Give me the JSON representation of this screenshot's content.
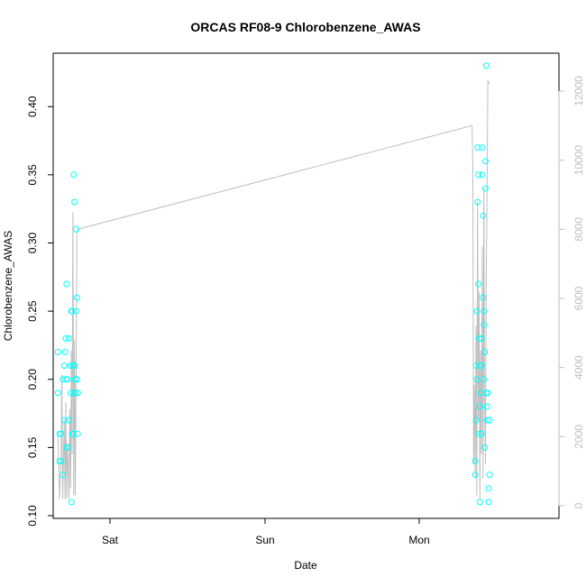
{
  "chart_data": {
    "type": "scatter",
    "title": "ORCAS RF08-9 Chlorobenzene_AWAS",
    "xlabel": "Date",
    "ylabel": "Chlorobenzene_AWAS",
    "x_ticks": [
      "Sat",
      "Sun",
      "Mon"
    ],
    "y_ticks": [
      "0.10",
      "0.15",
      "0.20",
      "0.25",
      "0.30",
      "0.35",
      "0.40"
    ],
    "y_lim": [
      0.1,
      0.42
    ],
    "y2_ticks": [
      "0",
      "2000",
      "4000",
      "6000",
      "8000",
      "10000",
      "12000"
    ],
    "y2_lim": [
      0,
      12000
    ],
    "grid": false,
    "colors": {
      "points": "#00ffff",
      "line": "#bebebe",
      "right_axis": "#bebebe"
    },
    "series": [
      {
        "values": [
          {
            "day": 0.73,
            "y": 0.22
          },
          {
            "day": 0.73,
            "y": 0.19
          },
          {
            "day": 0.74,
            "y": 0.16
          },
          {
            "day": 0.74,
            "y": 0.14
          },
          {
            "day": 0.75,
            "y": 0.16
          },
          {
            "day": 0.75,
            "y": 0.14
          },
          {
            "day": 0.76,
            "y": 0.13
          },
          {
            "day": 0.76,
            "y": 0.2
          },
          {
            "day": 0.77,
            "y": 0.21
          },
          {
            "day": 0.77,
            "y": 0.17
          },
          {
            "day": 0.775,
            "y": 0.22
          },
          {
            "day": 0.78,
            "y": 0.2
          },
          {
            "day": 0.78,
            "y": 0.23
          },
          {
            "day": 0.785,
            "y": 0.27
          },
          {
            "day": 0.785,
            "y": 0.15
          },
          {
            "day": 0.79,
            "y": 0.2
          },
          {
            "day": 0.79,
            "y": 0.15
          },
          {
            "day": 0.8,
            "y": 0.17
          },
          {
            "day": 0.8,
            "y": 0.23
          },
          {
            "day": 0.81,
            "y": 0.19
          },
          {
            "day": 0.81,
            "y": 0.21
          },
          {
            "day": 0.815,
            "y": 0.25
          },
          {
            "day": 0.815,
            "y": 0.11
          },
          {
            "day": 0.82,
            "y": 0.16
          },
          {
            "day": 0.82,
            "y": 0.25
          },
          {
            "day": 0.825,
            "y": 0.16
          },
          {
            "day": 0.825,
            "y": 0.21
          },
          {
            "day": 0.83,
            "y": 0.19
          },
          {
            "day": 0.83,
            "y": 0.35
          },
          {
            "day": 0.835,
            "y": 0.33
          },
          {
            "day": 0.835,
            "y": 0.21
          },
          {
            "day": 0.84,
            "y": 0.19
          },
          {
            "day": 0.84,
            "y": 0.2
          },
          {
            "day": 0.845,
            "y": 0.25
          },
          {
            "day": 0.845,
            "y": 0.31
          },
          {
            "day": 0.85,
            "y": 0.26
          },
          {
            "day": 0.85,
            "y": 0.2
          },
          {
            "day": 0.855,
            "y": 0.19
          },
          {
            "day": 0.855,
            "y": 0.16
          },
          {
            "day": 2.65,
            "y": 0.13
          },
          {
            "day": 2.65,
            "y": 0.14
          },
          {
            "day": 2.655,
            "y": 0.17
          },
          {
            "day": 2.655,
            "y": 0.21
          },
          {
            "day": 2.66,
            "y": 0.2
          },
          {
            "day": 2.66,
            "y": 0.25
          },
          {
            "day": 2.665,
            "y": 0.33
          },
          {
            "day": 2.665,
            "y": 0.37
          },
          {
            "day": 2.67,
            "y": 0.35
          },
          {
            "day": 2.67,
            "y": 0.27
          },
          {
            "day": 2.675,
            "y": 0.23
          },
          {
            "day": 2.675,
            "y": 0.16
          },
          {
            "day": 2.68,
            "y": 0.18
          },
          {
            "day": 2.68,
            "y": 0.11
          },
          {
            "day": 2.685,
            "y": 0.21
          },
          {
            "day": 2.685,
            "y": 0.19
          },
          {
            "day": 2.69,
            "y": 0.16
          },
          {
            "day": 2.69,
            "y": 0.23
          },
          {
            "day": 2.695,
            "y": 0.37
          },
          {
            "day": 2.695,
            "y": 0.35
          },
          {
            "day": 2.7,
            "y": 0.32
          },
          {
            "day": 2.7,
            "y": 0.26
          },
          {
            "day": 2.705,
            "y": 0.24
          },
          {
            "day": 2.705,
            "y": 0.2
          },
          {
            "day": 2.71,
            "y": 0.15
          },
          {
            "day": 2.71,
            "y": 0.22
          },
          {
            "day": 2.715,
            "y": 0.34
          },
          {
            "day": 2.715,
            "y": 0.36
          },
          {
            "day": 2.72,
            "y": 0.43
          },
          {
            "day": 2.72,
            "y": 0.19
          },
          {
            "day": 2.725,
            "y": 0.17
          },
          {
            "day": 2.725,
            "y": 0.18
          },
          {
            "day": 2.73,
            "y": 0.19
          },
          {
            "day": 2.735,
            "y": 0.12
          },
          {
            "day": 2.735,
            "y": 0.11
          },
          {
            "day": 2.74,
            "y": 0.13
          },
          {
            "day": 2.74,
            "y": 0.17
          },
          {
            "day": 2.705,
            "y": 0.25
          },
          {
            "day": 2.69,
            "y": 0.21
          },
          {
            "day": 2.68,
            "y": 0.18
          }
        ]
      },
      {
        "axis": "right",
        "values": [
          {
            "day": 0.73,
            "y": 2000
          },
          {
            "day": 0.74,
            "y": 200
          },
          {
            "day": 0.75,
            "y": 1500
          },
          {
            "day": 0.755,
            "y": 3800
          },
          {
            "day": 0.76,
            "y": 200
          },
          {
            "day": 0.77,
            "y": 2500
          },
          {
            "day": 0.775,
            "y": 200
          },
          {
            "day": 0.78,
            "y": 3000
          },
          {
            "day": 0.785,
            "y": 200
          },
          {
            "day": 0.79,
            "y": 1800
          },
          {
            "day": 0.8,
            "y": 200
          },
          {
            "day": 0.805,
            "y": 2800
          },
          {
            "day": 0.81,
            "y": 500
          },
          {
            "day": 0.815,
            "y": 4500
          },
          {
            "day": 0.82,
            "y": 1500
          },
          {
            "day": 0.825,
            "y": 8500
          },
          {
            "day": 0.83,
            "y": 300
          },
          {
            "day": 0.835,
            "y": 4800
          },
          {
            "day": 0.84,
            "y": 300
          },
          {
            "day": 0.845,
            "y": 3500
          },
          {
            "day": 0.85,
            "y": 7900
          },
          {
            "day": 0.855,
            "y": 8000
          },
          {
            "day": 2.63,
            "y": 11000
          },
          {
            "day": 2.635,
            "y": 9800
          },
          {
            "day": 2.64,
            "y": 1200
          },
          {
            "day": 2.645,
            "y": 3500
          },
          {
            "day": 2.65,
            "y": 800
          },
          {
            "day": 2.655,
            "y": 5200
          },
          {
            "day": 2.66,
            "y": 300
          },
          {
            "day": 2.665,
            "y": 8800
          },
          {
            "day": 2.67,
            "y": 2500
          },
          {
            "day": 2.675,
            "y": 6200
          },
          {
            "day": 2.68,
            "y": 200
          },
          {
            "day": 2.685,
            "y": 4500
          },
          {
            "day": 2.69,
            "y": 1500
          },
          {
            "day": 2.695,
            "y": 7500
          },
          {
            "day": 2.7,
            "y": 800
          },
          {
            "day": 2.705,
            "y": 9200
          },
          {
            "day": 2.71,
            "y": 3000
          },
          {
            "day": 2.715,
            "y": 1200
          },
          {
            "day": 2.72,
            "y": 6500
          },
          {
            "day": 2.725,
            "y": 9000
          },
          {
            "day": 2.73,
            "y": 12300
          },
          {
            "day": 2.74,
            "y": 12200
          }
        ]
      }
    ]
  }
}
